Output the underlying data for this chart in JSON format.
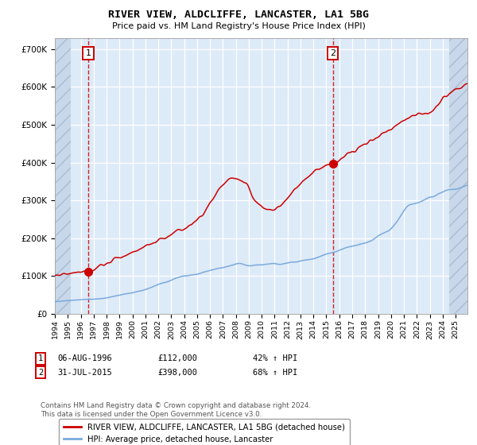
{
  "title": "RIVER VIEW, ALDCLIFFE, LANCASTER, LA1 5BG",
  "subtitle": "Price paid vs. HM Land Registry's House Price Index (HPI)",
  "legend_line1": "RIVER VIEW, ALDCLIFFE, LANCASTER, LA1 5BG (detached house)",
  "legend_line2": "HPI: Average price, detached house, Lancaster",
  "annotation1_date_str": "06-AUG-1996",
  "annotation1_price": "£112,000",
  "annotation1_hpi": "42% ↑ HPI",
  "annotation1_value": 112000,
  "annotation2_date_str": "31-JUL-2015",
  "annotation2_price": "£398,000",
  "annotation2_hpi": "68% ↑ HPI",
  "annotation2_value": 398000,
  "property_color": "#cc0000",
  "hpi_color": "#7aaadd",
  "dot_color": "#cc0000",
  "vline_color": "#cc0000",
  "bg_color": "#ddeaf7",
  "hatch_bg_color": "#c8d8ea",
  "grid_color": "#ffffff",
  "yticks": [
    0,
    100000,
    200000,
    300000,
    400000,
    500000,
    600000,
    700000
  ],
  "ylim": [
    0,
    730000
  ],
  "footer1": "Contains HM Land Registry data © Crown copyright and database right 2024.",
  "footer2": "This data is licensed under the Open Government Licence v3.0."
}
